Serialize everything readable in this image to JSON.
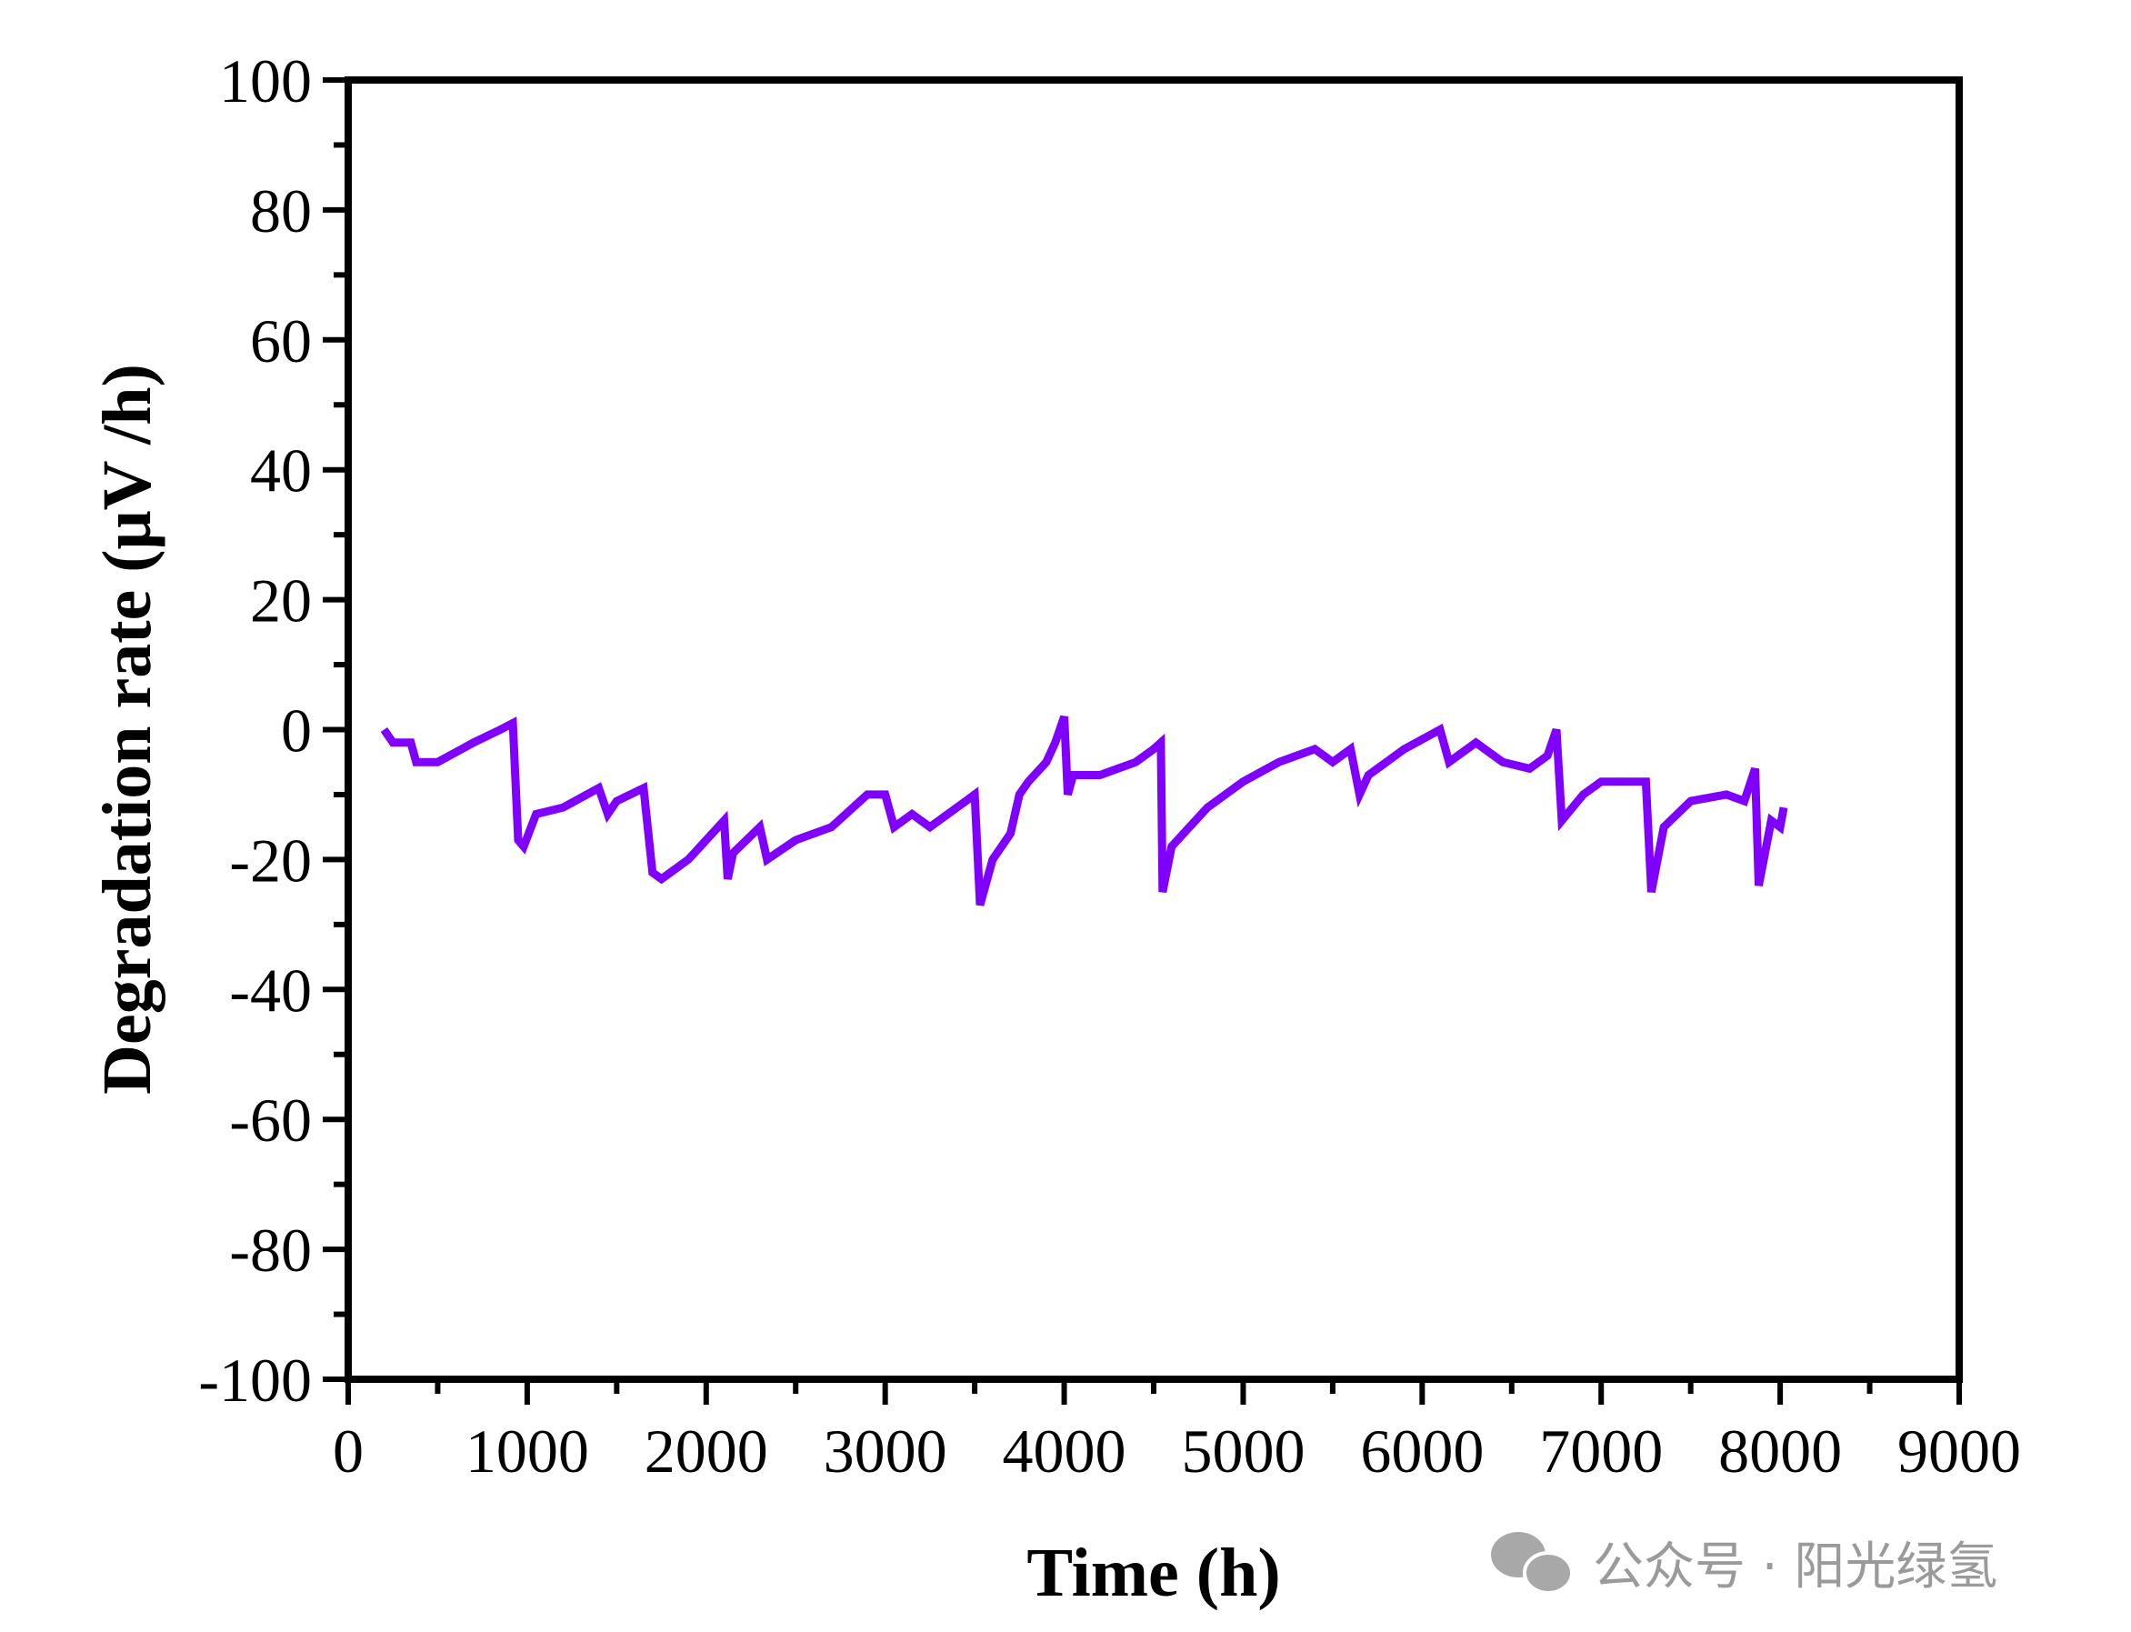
{
  "chart_data": {
    "type": "line",
    "title": "",
    "xlabel": "Time (h)",
    "ylabel": "Degradation rate (μV /h)",
    "xlim": [
      0,
      9000
    ],
    "ylim": [
      -100,
      100
    ],
    "xticks": [
      0,
      1000,
      2000,
      3000,
      4000,
      5000,
      6000,
      7000,
      8000,
      9000
    ],
    "yticks": [
      100,
      80,
      60,
      40,
      20,
      0,
      -20,
      -40,
      -60,
      -80,
      -100
    ],
    "grid": false,
    "series": [
      {
        "name": "Degradation rate",
        "color": "#7f00ff",
        "x": [
          200,
          250,
          350,
          380,
          500,
          700,
          850,
          920,
          950,
          980,
          1050,
          1200,
          1400,
          1450,
          1500,
          1650,
          1700,
          1750,
          1900,
          2100,
          2120,
          2150,
          2300,
          2340,
          2500,
          2700,
          2900,
          3000,
          3050,
          3150,
          3250,
          3450,
          3500,
          3530,
          3600,
          3700,
          3750,
          3800,
          3900,
          3950,
          4000,
          4020,
          4050,
          4200,
          4400,
          4500,
          4540,
          4550,
          4600,
          4800,
          5000,
          5200,
          5400,
          5500,
          5600,
          5650,
          5700,
          5900,
          6100,
          6150,
          6300,
          6450,
          6600,
          6700,
          6750,
          6780,
          6900,
          7000,
          7250,
          7280,
          7350,
          7500,
          7700,
          7800,
          7860,
          7880,
          7950,
          8000,
          8020
        ],
        "y": [
          0,
          -2,
          -2,
          -5,
          -5,
          -2,
          0,
          1,
          -17,
          -18,
          -13,
          -12,
          -9,
          -13,
          -11,
          -9,
          -22,
          -23,
          -20,
          -14,
          -23,
          -19,
          -15,
          -20,
          -17,
          -15,
          -10,
          -10,
          -15,
          -13,
          -15,
          -11,
          -10,
          -27,
          -20,
          -16,
          -10,
          -8,
          -5,
          -2,
          2,
          -10,
          -7,
          -7,
          -5,
          -3,
          -2,
          -25,
          -18,
          -12,
          -8,
          -5,
          -3,
          -5,
          -3,
          -10,
          -7,
          -3,
          0,
          -5,
          -2,
          -5,
          -6,
          -4,
          0,
          -14,
          -10,
          -8,
          -8,
          -25,
          -15,
          -11,
          -10,
          -11,
          -6,
          -24,
          -14,
          -15,
          -12
        ]
      }
    ]
  },
  "watermark": {
    "icon": "wechat-icon",
    "text": "公众号 · 阳光绿氢"
  }
}
